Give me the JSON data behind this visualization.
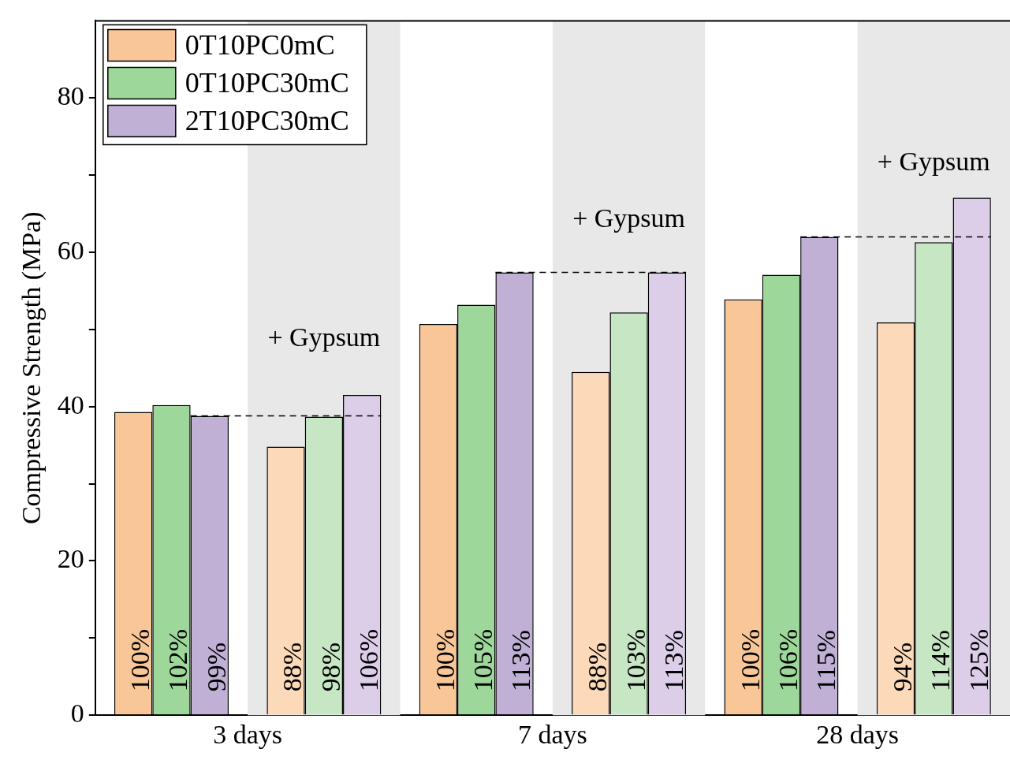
{
  "chart_data": {
    "type": "bar",
    "ylabel": "Compressive Strength (MPa)",
    "categories": [
      "3 days",
      "7 days",
      "28 days"
    ],
    "series": [
      {
        "name": "0T10PC0mC",
        "color": "#f9c797",
        "values": [
          39.3,
          50.7,
          53.9
        ]
      },
      {
        "name": "0T10PC30mC",
        "color": "#9dd89a",
        "values": [
          40.2,
          53.2,
          57.1
        ]
      },
      {
        "name": "2T10PC30mC",
        "color": "#c0b0d6",
        "values": [
          38.8,
          57.4,
          62.0
        ]
      },
      {
        "color": "#fcd9b9",
        "values": [
          34.8,
          44.5,
          50.9
        ]
      },
      {
        "color": "#c6e6c4",
        "values": [
          38.7,
          52.2,
          61.3
        ]
      },
      {
        "color": "#dccde8",
        "values": [
          41.5,
          57.4,
          67.1
        ]
      }
    ],
    "ylim": [
      0,
      90
    ],
    "yticks": [
      0,
      {
        "value": 10,
        "label": null
      },
      20,
      {
        "value": 30,
        "label": null
      },
      40,
      {
        "value": 50,
        "label": null
      },
      60,
      {
        "value": 70,
        "label": null
      },
      80
    ],
    "grid": false,
    "legend": "top left",
    "bands": [
      {
        "axis": "x",
        "from": "3 days",
        "to": "3 days",
        "color": "#e8e8e8"
      },
      {
        "axis": "x",
        "from": "7 days",
        "to": "7 days",
        "color": "#e8e8e8"
      },
      {
        "axis": "x",
        "from": "28 days",
        "to": "28 days",
        "color": "#e8e8e8"
      }
    ],
    "ref_lines": [
      {
        "axis": "y",
        "value": 38.8,
        "line_style": "dashed"
      },
      {
        "axis": "y",
        "value": 57.4,
        "line_style": "dashed"
      },
      {
        "axis": "y",
        "value": 62.0,
        "line_style": "dashed"
      }
    ],
    "annotations": [
      {
        "text": "+ Gypsum",
        "x": "3 days",
        "y": 48.8
      },
      {
        "text": "+ Gypsum",
        "x": "7 days",
        "y": 64.2
      },
      {
        "text": "+ Gypsum",
        "x": "28 days",
        "y": 71.5
      },
      "100%",
      "100%",
      "100%",
      "102%",
      "105%",
      "106%",
      "99%",
      "113%",
      "115%",
      "88%",
      "88%",
      "94%",
      "98%",
      "103%",
      "114%",
      "106%",
      "113%",
      "125%"
    ]
  }
}
